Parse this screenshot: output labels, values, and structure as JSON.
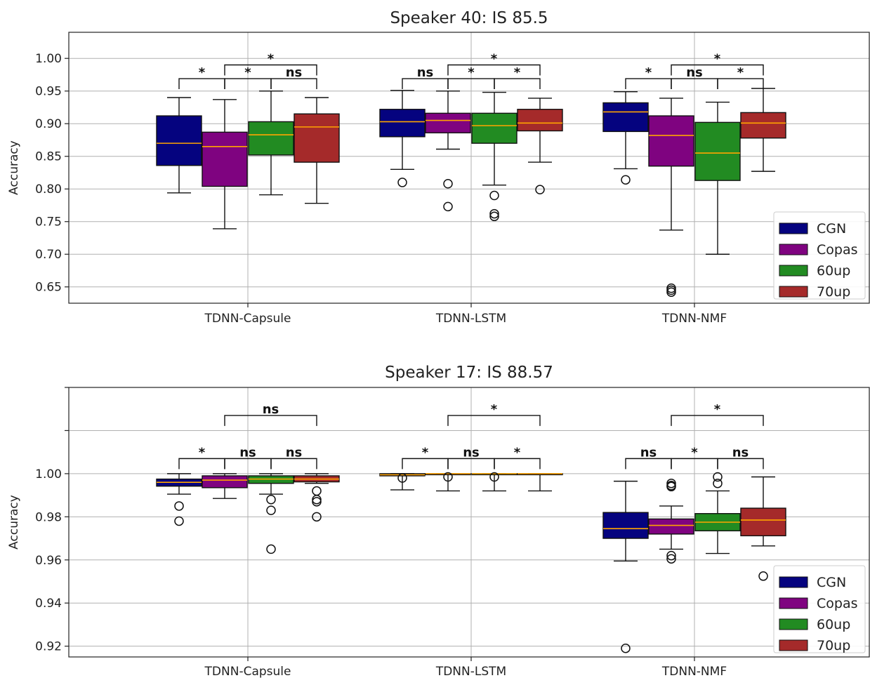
{
  "colors": {
    "CGN": "#05037f",
    "Copas": "#7f0380",
    "60up": "#228b22",
    "70up": "#a52a2a",
    "median": "#ffa500",
    "grid": "#b0b0b0"
  },
  "chart_data": [
    {
      "type": "box",
      "title": "Speaker 40:  IS 85.5",
      "ylabel": "Accuracy",
      "ylim": [
        0.625,
        1.04
      ],
      "yticks": [
        0.65,
        0.7,
        0.75,
        0.8,
        0.85,
        0.9,
        0.95,
        1.0
      ],
      "ytick_labels": [
        "0.65",
        "0.70",
        "0.75",
        "0.80",
        "0.85",
        "0.90",
        "0.95",
        "1.00"
      ],
      "categories": [
        "TDNN-Capsule",
        "TDNN-LSTM",
        "TDNN-NMF"
      ],
      "series_names": [
        "CGN",
        "Copas",
        "60up",
        "70up"
      ],
      "legend": {
        "position": "lower-right",
        "items": [
          "CGN",
          "Copas",
          "60up",
          "70up"
        ]
      },
      "grid": true,
      "boxes": [
        [
          {
            "series": "CGN",
            "whislo": 0.794,
            "q1": 0.836,
            "med": 0.87,
            "q3": 0.912,
            "whishi": 0.94,
            "fliers": []
          },
          {
            "series": "Copas",
            "whislo": 0.739,
            "q1": 0.804,
            "med": 0.865,
            "q3": 0.887,
            "whishi": 0.937,
            "fliers": []
          },
          {
            "series": "60up",
            "whislo": 0.791,
            "q1": 0.852,
            "med": 0.883,
            "q3": 0.903,
            "whishi": 0.95,
            "fliers": []
          },
          {
            "series": "70up",
            "whislo": 0.778,
            "q1": 0.841,
            "med": 0.895,
            "q3": 0.915,
            "whishi": 0.94,
            "fliers": []
          }
        ],
        [
          {
            "series": "CGN",
            "whislo": 0.83,
            "q1": 0.88,
            "med": 0.903,
            "q3": 0.922,
            "whishi": 0.951,
            "fliers": [
              0.81
            ]
          },
          {
            "series": "Copas",
            "whislo": 0.861,
            "q1": 0.886,
            "med": 0.905,
            "q3": 0.916,
            "whishi": 0.95,
            "fliers": [
              0.808,
              0.773
            ]
          },
          {
            "series": "60up",
            "whislo": 0.806,
            "q1": 0.87,
            "med": 0.897,
            "q3": 0.916,
            "whishi": 0.948,
            "fliers": [
              0.79,
              0.762,
              0.758
            ]
          },
          {
            "series": "70up",
            "whislo": 0.841,
            "q1": 0.889,
            "med": 0.901,
            "q3": 0.922,
            "whishi": 0.939,
            "fliers": [
              0.799
            ]
          }
        ],
        [
          {
            "series": "CGN",
            "whislo": 0.831,
            "q1": 0.888,
            "med": 0.918,
            "q3": 0.932,
            "whishi": 0.949,
            "fliers": [
              0.814
            ]
          },
          {
            "series": "Copas",
            "whislo": 0.737,
            "q1": 0.835,
            "med": 0.882,
            "q3": 0.912,
            "whishi": 0.939,
            "fliers": [
              0.648,
              0.645,
              0.642
            ]
          },
          {
            "series": "60up",
            "whislo": 0.7,
            "q1": 0.813,
            "med": 0.855,
            "q3": 0.902,
            "whishi": 0.933,
            "fliers": []
          },
          {
            "series": "70up",
            "whislo": 0.827,
            "q1": 0.878,
            "med": 0.901,
            "q3": 0.917,
            "whishi": 0.954,
            "fliers": []
          }
        ]
      ],
      "significance": [
        {
          "group": 0,
          "from": 0,
          "to": 1,
          "label": "*",
          "y": 0.969
        },
        {
          "group": 0,
          "from": 1,
          "to": 2,
          "label": "*",
          "y": 0.969
        },
        {
          "group": 0,
          "from": 2,
          "to": 3,
          "label": "ns",
          "y": 0.969
        },
        {
          "group": 0,
          "from": 1,
          "to": 3,
          "label": "*",
          "y": 0.99
        },
        {
          "group": 1,
          "from": 0,
          "to": 1,
          "label": "ns",
          "y": 0.969
        },
        {
          "group": 1,
          "from": 1,
          "to": 2,
          "label": "*",
          "y": 0.969
        },
        {
          "group": 1,
          "from": 2,
          "to": 3,
          "label": "*",
          "y": 0.969
        },
        {
          "group": 1,
          "from": 1,
          "to": 3,
          "label": "*",
          "y": 0.99
        },
        {
          "group": 2,
          "from": 0,
          "to": 1,
          "label": "*",
          "y": 0.969
        },
        {
          "group": 2,
          "from": 1,
          "to": 2,
          "label": "ns",
          "y": 0.969
        },
        {
          "group": 2,
          "from": 2,
          "to": 3,
          "label": "*",
          "y": 0.969
        },
        {
          "group": 2,
          "from": 1,
          "to": 3,
          "label": "*",
          "y": 0.99
        }
      ]
    },
    {
      "type": "box",
      "title": "Speaker 17:  IS 88.57",
      "ylabel": "Accuracy",
      "ylim": [
        0.915,
        1.04
      ],
      "yticks": [
        0.92,
        0.94,
        0.96,
        0.98,
        1.0,
        1.02,
        1.04
      ],
      "ytick_labels": [
        "0.92",
        "0.94",
        "0.96",
        "0.98",
        "1.00",
        "",
        ""
      ],
      "categories": [
        "TDNN-Capsule",
        "TDNN-LSTM",
        "TDNN-NMF"
      ],
      "series_names": [
        "CGN",
        "Copas",
        "60up",
        "70up"
      ],
      "legend": {
        "position": "lower-right",
        "items": [
          "CGN",
          "Copas",
          "60up",
          "70up"
        ]
      },
      "grid": true,
      "boxes": [
        [
          {
            "series": "CGN",
            "whislo": 0.9905,
            "q1": 0.9942,
            "med": 0.996,
            "q3": 0.9975,
            "whishi": 1.0,
            "fliers": [
              0.985,
              0.978
            ]
          },
          {
            "series": "Copas",
            "whislo": 0.9885,
            "q1": 0.9935,
            "med": 0.997,
            "q3": 0.999,
            "whishi": 1.0,
            "fliers": []
          },
          {
            "series": "60up",
            "whislo": 0.9905,
            "q1": 0.9955,
            "med": 0.9975,
            "q3": 0.999,
            "whishi": 1.0,
            "fliers": [
              0.988,
              0.983,
              0.965
            ]
          },
          {
            "series": "70up",
            "whislo": 0.9955,
            "q1": 0.9962,
            "med": 0.9975,
            "q3": 0.999,
            "whishi": 1.0,
            "fliers": [
              0.992,
              0.988,
              0.987,
              0.98
            ]
          }
        ],
        [
          {
            "series": "CGN",
            "whislo": 0.9925,
            "q1": 0.999,
            "med": 0.9995,
            "q3": 1.0,
            "whishi": 1.0,
            "fliers": [
              0.998
            ]
          },
          {
            "series": "Copas",
            "whislo": 0.992,
            "q1": 1.0,
            "med": 1.0,
            "q3": 1.0,
            "whishi": 1.0,
            "fliers": [
              0.9985
            ]
          },
          {
            "series": "60up",
            "whislo": 0.992,
            "q1": 1.0,
            "med": 1.0,
            "q3": 1.0,
            "whishi": 1.0,
            "fliers": [
              0.9985
            ]
          },
          {
            "series": "70up",
            "whislo": 0.992,
            "q1": 1.0,
            "med": 1.0,
            "q3": 1.0,
            "whishi": 1.0,
            "fliers": []
          }
        ],
        [
          {
            "series": "CGN",
            "whislo": 0.9595,
            "q1": 0.97,
            "med": 0.9745,
            "q3": 0.982,
            "whishi": 0.9965,
            "fliers": [
              0.919
            ]
          },
          {
            "series": "Copas",
            "whislo": 0.965,
            "q1": 0.972,
            "med": 0.976,
            "q3": 0.979,
            "whishi": 0.985,
            "fliers": [
              0.9955,
              0.9945,
              0.994,
              0.962,
              0.9605
            ]
          },
          {
            "series": "60up",
            "whislo": 0.963,
            "q1": 0.9735,
            "med": 0.9775,
            "q3": 0.9815,
            "whishi": 0.992,
            "fliers": [
              0.9985,
              0.9955
            ]
          },
          {
            "series": "70up",
            "whislo": 0.9665,
            "q1": 0.9712,
            "med": 0.9785,
            "q3": 0.984,
            "whishi": 0.9985,
            "fliers": [
              0.9525
            ]
          }
        ]
      ],
      "significance": [
        {
          "group": 0,
          "from": 0,
          "to": 1,
          "label": "*",
          "y": 1.007
        },
        {
          "group": 0,
          "from": 1,
          "to": 2,
          "label": "ns",
          "y": 1.007
        },
        {
          "group": 0,
          "from": 2,
          "to": 3,
          "label": "ns",
          "y": 1.007
        },
        {
          "group": 0,
          "from": 1,
          "to": 3,
          "label": "ns",
          "y": 1.027
        },
        {
          "group": 1,
          "from": 0,
          "to": 1,
          "label": "*",
          "y": 1.007
        },
        {
          "group": 1,
          "from": 1,
          "to": 2,
          "label": "ns",
          "y": 1.007
        },
        {
          "group": 1,
          "from": 2,
          "to": 3,
          "label": "*",
          "y": 1.007
        },
        {
          "group": 1,
          "from": 1,
          "to": 3,
          "label": "*",
          "y": 1.027
        },
        {
          "group": 2,
          "from": 0,
          "to": 1,
          "label": "ns",
          "y": 1.007
        },
        {
          "group": 2,
          "from": 1,
          "to": 2,
          "label": "*",
          "y": 1.007
        },
        {
          "group": 2,
          "from": 2,
          "to": 3,
          "label": "ns",
          "y": 1.007
        },
        {
          "group": 2,
          "from": 1,
          "to": 3,
          "label": "*",
          "y": 1.027
        }
      ]
    }
  ]
}
